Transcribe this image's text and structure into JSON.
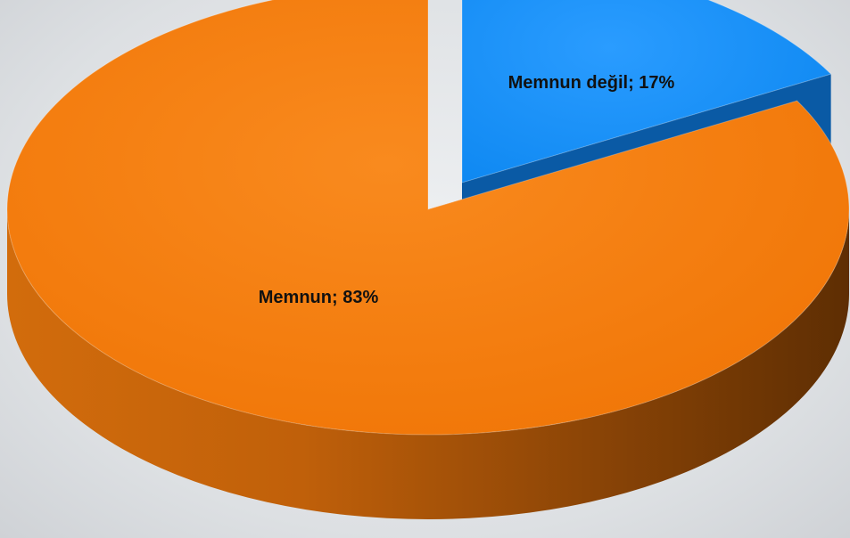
{
  "chart_data": {
    "type": "pie",
    "title": "",
    "style": "3d-exploded",
    "slices": [
      {
        "label": "Memnun değil; 17%",
        "name": "Memnun değil",
        "value": 17,
        "color": "#1e90f5",
        "side_color": "#0b4f8a"
      },
      {
        "label": "Memnun; 83%",
        "name": "Memnun",
        "value": 83,
        "color": "#f57a0a",
        "side_color": "#a9520a"
      }
    ]
  }
}
